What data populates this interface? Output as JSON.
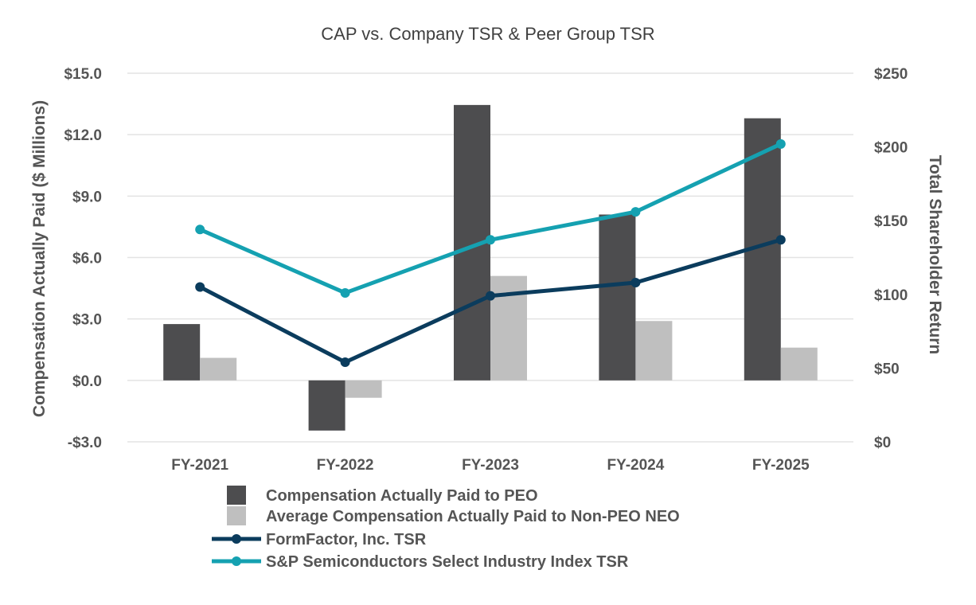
{
  "chart_data": {
    "type": "bar",
    "title": "CAP vs. Company TSR & Peer Group TSR",
    "categories": [
      "FY-2021",
      "FY-2022",
      "FY-2023",
      "FY-2024",
      "FY-2025"
    ],
    "ylabel": "Compensation Actually Paid ($ Millions)",
    "y2label": "Total Shareholder Return",
    "ylim": [
      -3.0,
      15.0
    ],
    "y_ticks": [
      15.0,
      12.0,
      9.0,
      6.0,
      3.0,
      0.0,
      -3.0
    ],
    "y_tick_labels": [
      "$15.0",
      "$12.0",
      "$9.0",
      "$6.0",
      "$3.0",
      "$0.0",
      "-$3.0"
    ],
    "y2lim": [
      0,
      250
    ],
    "y2_ticks": [
      250,
      200,
      150,
      100,
      50,
      0
    ],
    "y2_tick_labels": [
      "$250",
      "$200",
      "$150",
      "$100",
      "$50",
      "$0"
    ],
    "grid": true,
    "legend_position": "bottom",
    "series": [
      {
        "name": "Compensation Actually Paid to PEO",
        "kind": "bar",
        "axis": "left",
        "color": "#4d4d4f",
        "values": [
          2.75,
          -2.45,
          13.45,
          8.1,
          12.8
        ]
      },
      {
        "name": "Average Compensation Actually Paid to Non-PEO NEO",
        "kind": "bar",
        "axis": "left",
        "color": "#bfbfbf",
        "values": [
          1.1,
          -0.85,
          5.1,
          2.9,
          1.6
        ]
      },
      {
        "name": "FormFactor, Inc. TSR",
        "kind": "line",
        "axis": "right",
        "color": "#0b3c5d",
        "values": [
          105,
          54,
          99,
          108,
          137
        ]
      },
      {
        "name": "S&P Semiconductors Select Industry Index TSR",
        "kind": "line",
        "axis": "right",
        "color": "#15a1b1",
        "values": [
          144,
          101,
          137,
          156,
          202
        ]
      }
    ]
  }
}
